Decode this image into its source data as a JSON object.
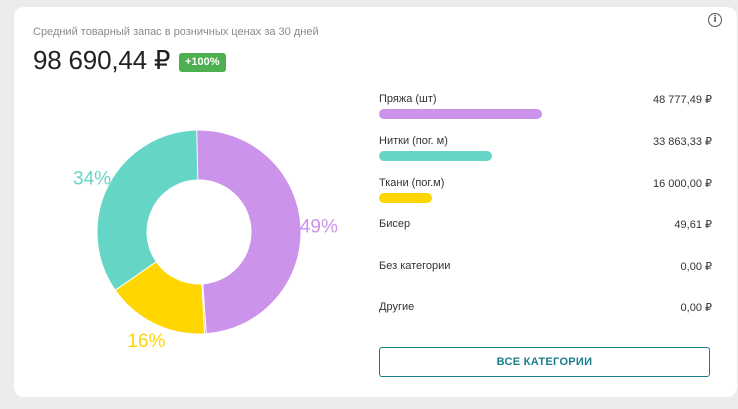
{
  "card": {
    "subtitle": "Средний товарный запас в розничных ценах за 30 дней",
    "amount": "98 690,44 ₽",
    "badge": "+100%",
    "info_icon": "info-circle-icon"
  },
  "chart_data": {
    "type": "pie",
    "variant": "donut",
    "slices": [
      {
        "label": "Пряжа (шт)",
        "value": 48777.49,
        "percent_label": "49%",
        "color": "#cb93e9"
      },
      {
        "label": "Бисер",
        "value": 49.61,
        "percent_label": "",
        "color": "#e08a2a"
      },
      {
        "label": "Ткани (пог.м)",
        "value": 16000.0,
        "percent_label": "16%",
        "color": "#ffd600"
      },
      {
        "label": "Нитки (пог. м)",
        "value": 33863.33,
        "percent_label": "34%",
        "color": "#65d6c6"
      }
    ]
  },
  "categories": [
    {
      "name": "Пряжа (шт)",
      "value": "48 777,49 ₽",
      "fraction": 0.494,
      "color": "#cb93e9"
    },
    {
      "name": "Нитки (пог. м)",
      "value": "33 863,33 ₽",
      "fraction": 0.343,
      "color": "#65d6c6"
    },
    {
      "name": "Ткани (пог.м)",
      "value": "16 000,00 ₽",
      "fraction": 0.162,
      "color": "#ffd600"
    },
    {
      "name": "Бисер",
      "value": "49,61 ₽",
      "fraction": 0,
      "color": ""
    },
    {
      "name": "Без категории",
      "value": "0,00 ₽",
      "fraction": 0,
      "color": ""
    },
    {
      "name": "Другие",
      "value": "0,00 ₽",
      "fraction": 0,
      "color": ""
    }
  ],
  "buttons": {
    "all_categories": "ВСЕ КАТЕГОРИИ"
  }
}
